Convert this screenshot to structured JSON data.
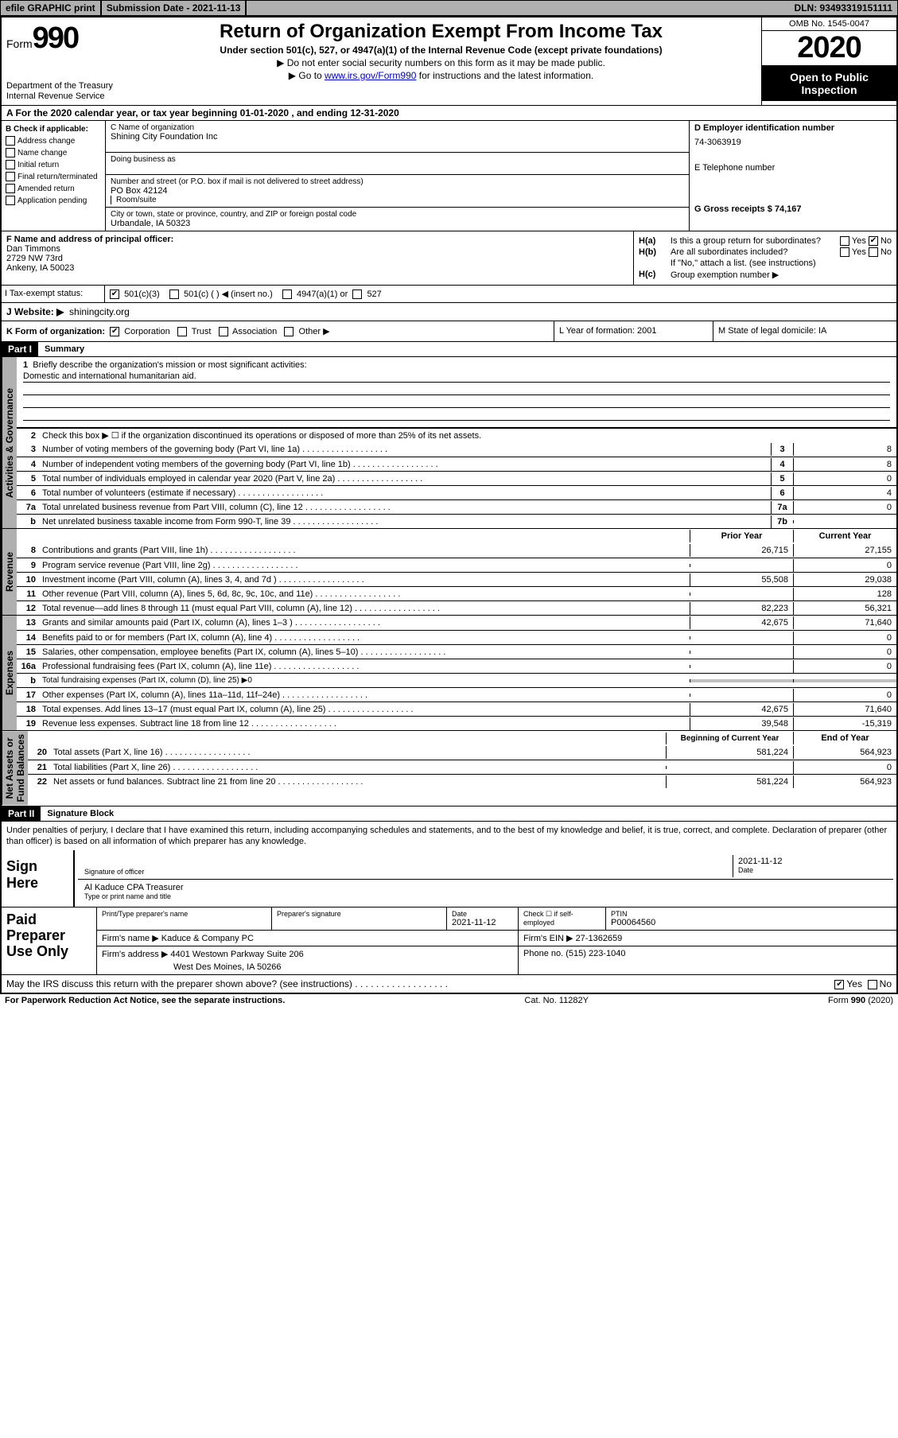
{
  "topbar": {
    "efile": "efile GRAPHIC print",
    "submission": "Submission Date - 2021-11-13",
    "dln": "DLN: 93493319151111"
  },
  "header": {
    "formLabel": "Form",
    "formNum": "990",
    "dept": "Department of the Treasury\nInternal Revenue Service",
    "title": "Return of Organization Exempt From Income Tax",
    "sub1": "Under section 501(c), 527, or 4947(a)(1) of the Internal Revenue Code (except private foundations)",
    "sub2": "▶ Do not enter social security numbers on this form as it may be made public.",
    "sub3a": "▶ Go to ",
    "sub3link": "www.irs.gov/Form990",
    "sub3b": " for instructions and the latest information.",
    "omb": "OMB No. 1545-0047",
    "year": "2020",
    "inspection": "Open to Public Inspection"
  },
  "rowA": "A For the 2020 calendar year, or tax year beginning 01-01-2020    , and ending 12-31-2020",
  "secB": {
    "bLabel": "B Check if applicable:",
    "items": [
      "Address change",
      "Name change",
      "Initial return",
      "Final return/terminated",
      "Amended return",
      "Application pending"
    ],
    "cName": "C Name of organization",
    "orgName": "Shining City Foundation Inc",
    "dba": "Doing business as",
    "addrLabel": "Number and street (or P.O. box if mail is not delivered to street address)",
    "room": "Room/suite",
    "addr": "PO Box 42124",
    "cityLabel": "City or town, state or province, country, and ZIP or foreign postal code",
    "city": "Urbandale, IA  50323",
    "dLabel": "D Employer identification number",
    "ein": "74-3063919",
    "eLabel": "E Telephone number",
    "gLabel": "G Gross receipts $ 74,167"
  },
  "principal": {
    "fLabel": "F  Name and address of principal officer:",
    "name": "Dan Timmons",
    "street": "2729 NW 73rd",
    "csz": "Ankeny, IA  50023",
    "ha": "Is this a group return for subordinates?",
    "hb": "Are all subordinates included?",
    "hnote": "If \"No,\" attach a list. (see instructions)",
    "hc": "Group exemption number ▶"
  },
  "taxExempt": {
    "label": "Tax-exempt status:",
    "opt1": "501(c)(3)",
    "opt2": "501(c) (  ) ◀ (insert no.)",
    "opt3": "4947(a)(1) or",
    "opt4": "527"
  },
  "website": {
    "label": "J  Website: ▶",
    "value": "shiningcity.org"
  },
  "rowK": {
    "k": "K Form of organization:",
    "opts": [
      "Corporation",
      "Trust",
      "Association",
      "Other ▶"
    ],
    "l": "L Year of formation: 2001",
    "m": "M State of legal domicile: IA"
  },
  "part1": {
    "header": "Part I",
    "title": "Summary",
    "vtab1": "Activities & Governance",
    "vtab2": "Revenue",
    "vtab3": "Expenses",
    "vtab4": "Net Assets or\nFund Balances",
    "line1": "Briefly describe the organization's mission or most significant activities:",
    "mission": "Domestic and international humanitarian aid.",
    "line2": "Check this box ▶ ☐  if the organization discontinued its operations or disposed of more than 25% of its net assets.",
    "lines": [
      {
        "n": "3",
        "d": "Number of voting members of the governing body (Part VI, line 1a)",
        "box": "3",
        "v2": "8"
      },
      {
        "n": "4",
        "d": "Number of independent voting members of the governing body (Part VI, line 1b)",
        "box": "4",
        "v2": "8"
      },
      {
        "n": "5",
        "d": "Total number of individuals employed in calendar year 2020 (Part V, line 2a)",
        "box": "5",
        "v2": "0"
      },
      {
        "n": "6",
        "d": "Total number of volunteers (estimate if necessary)",
        "box": "6",
        "v2": "4"
      },
      {
        "n": "7a",
        "d": "Total unrelated business revenue from Part VIII, column (C), line 12",
        "box": "7a",
        "v2": "0"
      },
      {
        "n": "b",
        "d": "Net unrelated business taxable income from Form 990-T, line 39",
        "box": "7b",
        "v2": ""
      }
    ],
    "colHead1": "Prior Year",
    "colHead2": "Current Year",
    "revLines": [
      {
        "n": "8",
        "d": "Contributions and grants (Part VIII, line 1h)",
        "v1": "26,715",
        "v2": "27,155"
      },
      {
        "n": "9",
        "d": "Program service revenue (Part VIII, line 2g)",
        "v1": "",
        "v2": "0"
      },
      {
        "n": "10",
        "d": "Investment income (Part VIII, column (A), lines 3, 4, and 7d )",
        "v1": "55,508",
        "v2": "29,038"
      },
      {
        "n": "11",
        "d": "Other revenue (Part VIII, column (A), lines 5, 6d, 8c, 9c, 10c, and 11e)",
        "v1": "",
        "v2": "128"
      },
      {
        "n": "12",
        "d": "Total revenue—add lines 8 through 11 (must equal Part VIII, column (A), line 12)",
        "v1": "82,223",
        "v2": "56,321"
      }
    ],
    "expLines": [
      {
        "n": "13",
        "d": "Grants and similar amounts paid (Part IX, column (A), lines 1–3 )",
        "v1": "42,675",
        "v2": "71,640"
      },
      {
        "n": "14",
        "d": "Benefits paid to or for members (Part IX, column (A), line 4)",
        "v1": "",
        "v2": "0"
      },
      {
        "n": "15",
        "d": "Salaries, other compensation, employee benefits (Part IX, column (A), lines 5–10)",
        "v1": "",
        "v2": "0"
      },
      {
        "n": "16a",
        "d": "Professional fundraising fees (Part IX, column (A), line 11e)",
        "v1": "",
        "v2": "0"
      },
      {
        "n": "b",
        "d": "Total fundraising expenses (Part IX, column (D), line 25) ▶0",
        "shade": true
      },
      {
        "n": "17",
        "d": "Other expenses (Part IX, column (A), lines 11a–11d, 11f–24e)",
        "v1": "",
        "v2": "0"
      },
      {
        "n": "18",
        "d": "Total expenses. Add lines 13–17 (must equal Part IX, column (A), line 25)",
        "v1": "42,675",
        "v2": "71,640"
      },
      {
        "n": "19",
        "d": "Revenue less expenses. Subtract line 18 from line 12",
        "v1": "39,548",
        "v2": "-15,319"
      }
    ],
    "balHead1": "Beginning of Current Year",
    "balHead2": "End of Year",
    "balLines": [
      {
        "n": "20",
        "d": "Total assets (Part X, line 16)",
        "v1": "581,224",
        "v2": "564,923"
      },
      {
        "n": "21",
        "d": "Total liabilities (Part X, line 26)",
        "v1": "",
        "v2": "0"
      },
      {
        "n": "22",
        "d": "Net assets or fund balances. Subtract line 21 from line 20",
        "v1": "581,224",
        "v2": "564,923"
      }
    ]
  },
  "part2": {
    "header": "Part II",
    "title": "Signature Block",
    "perjury": "Under penalties of perjury, I declare that I have examined this return, including accompanying schedules and statements, and to the best of my knowledge and belief, it is true, correct, and complete. Declaration of preparer (other than officer) is based on all information of which preparer has any knowledge."
  },
  "sign": {
    "label": "Sign Here",
    "sigOfficer": "Signature of officer",
    "date": "2021-11-12",
    "dateLabel": "Date",
    "name": "Al Kaduce CPA  Treasurer",
    "nameLabel": "Type or print name and title"
  },
  "paid": {
    "label": "Paid Preparer Use Only",
    "h1": "Print/Type preparer's name",
    "h2": "Preparer's signature",
    "h3": "Date",
    "dateVal": "2021-11-12",
    "h4": "Check ☐  if self-employed",
    "h5": "PTIN",
    "ptin": "P00064560",
    "firmLabel": "Firm's name     ▶",
    "firm": "Kaduce & Company PC",
    "feinLabel": "Firm's EIN ▶",
    "fein": "27-1362659",
    "addrLabel": "Firm's address ▶",
    "addr1": "4401 Westown Parkway Suite 206",
    "addr2": "West Des Moines, IA  50266",
    "phoneLabel": "Phone no.",
    "phone": "(515) 223-1040"
  },
  "discuss": "May the IRS discuss this return with the preparer shown above? (see instructions)",
  "footer": {
    "left": "For Paperwork Reduction Act Notice, see the separate instructions.",
    "mid": "Cat. No. 11282Y",
    "right": "Form 990 (2020)"
  }
}
